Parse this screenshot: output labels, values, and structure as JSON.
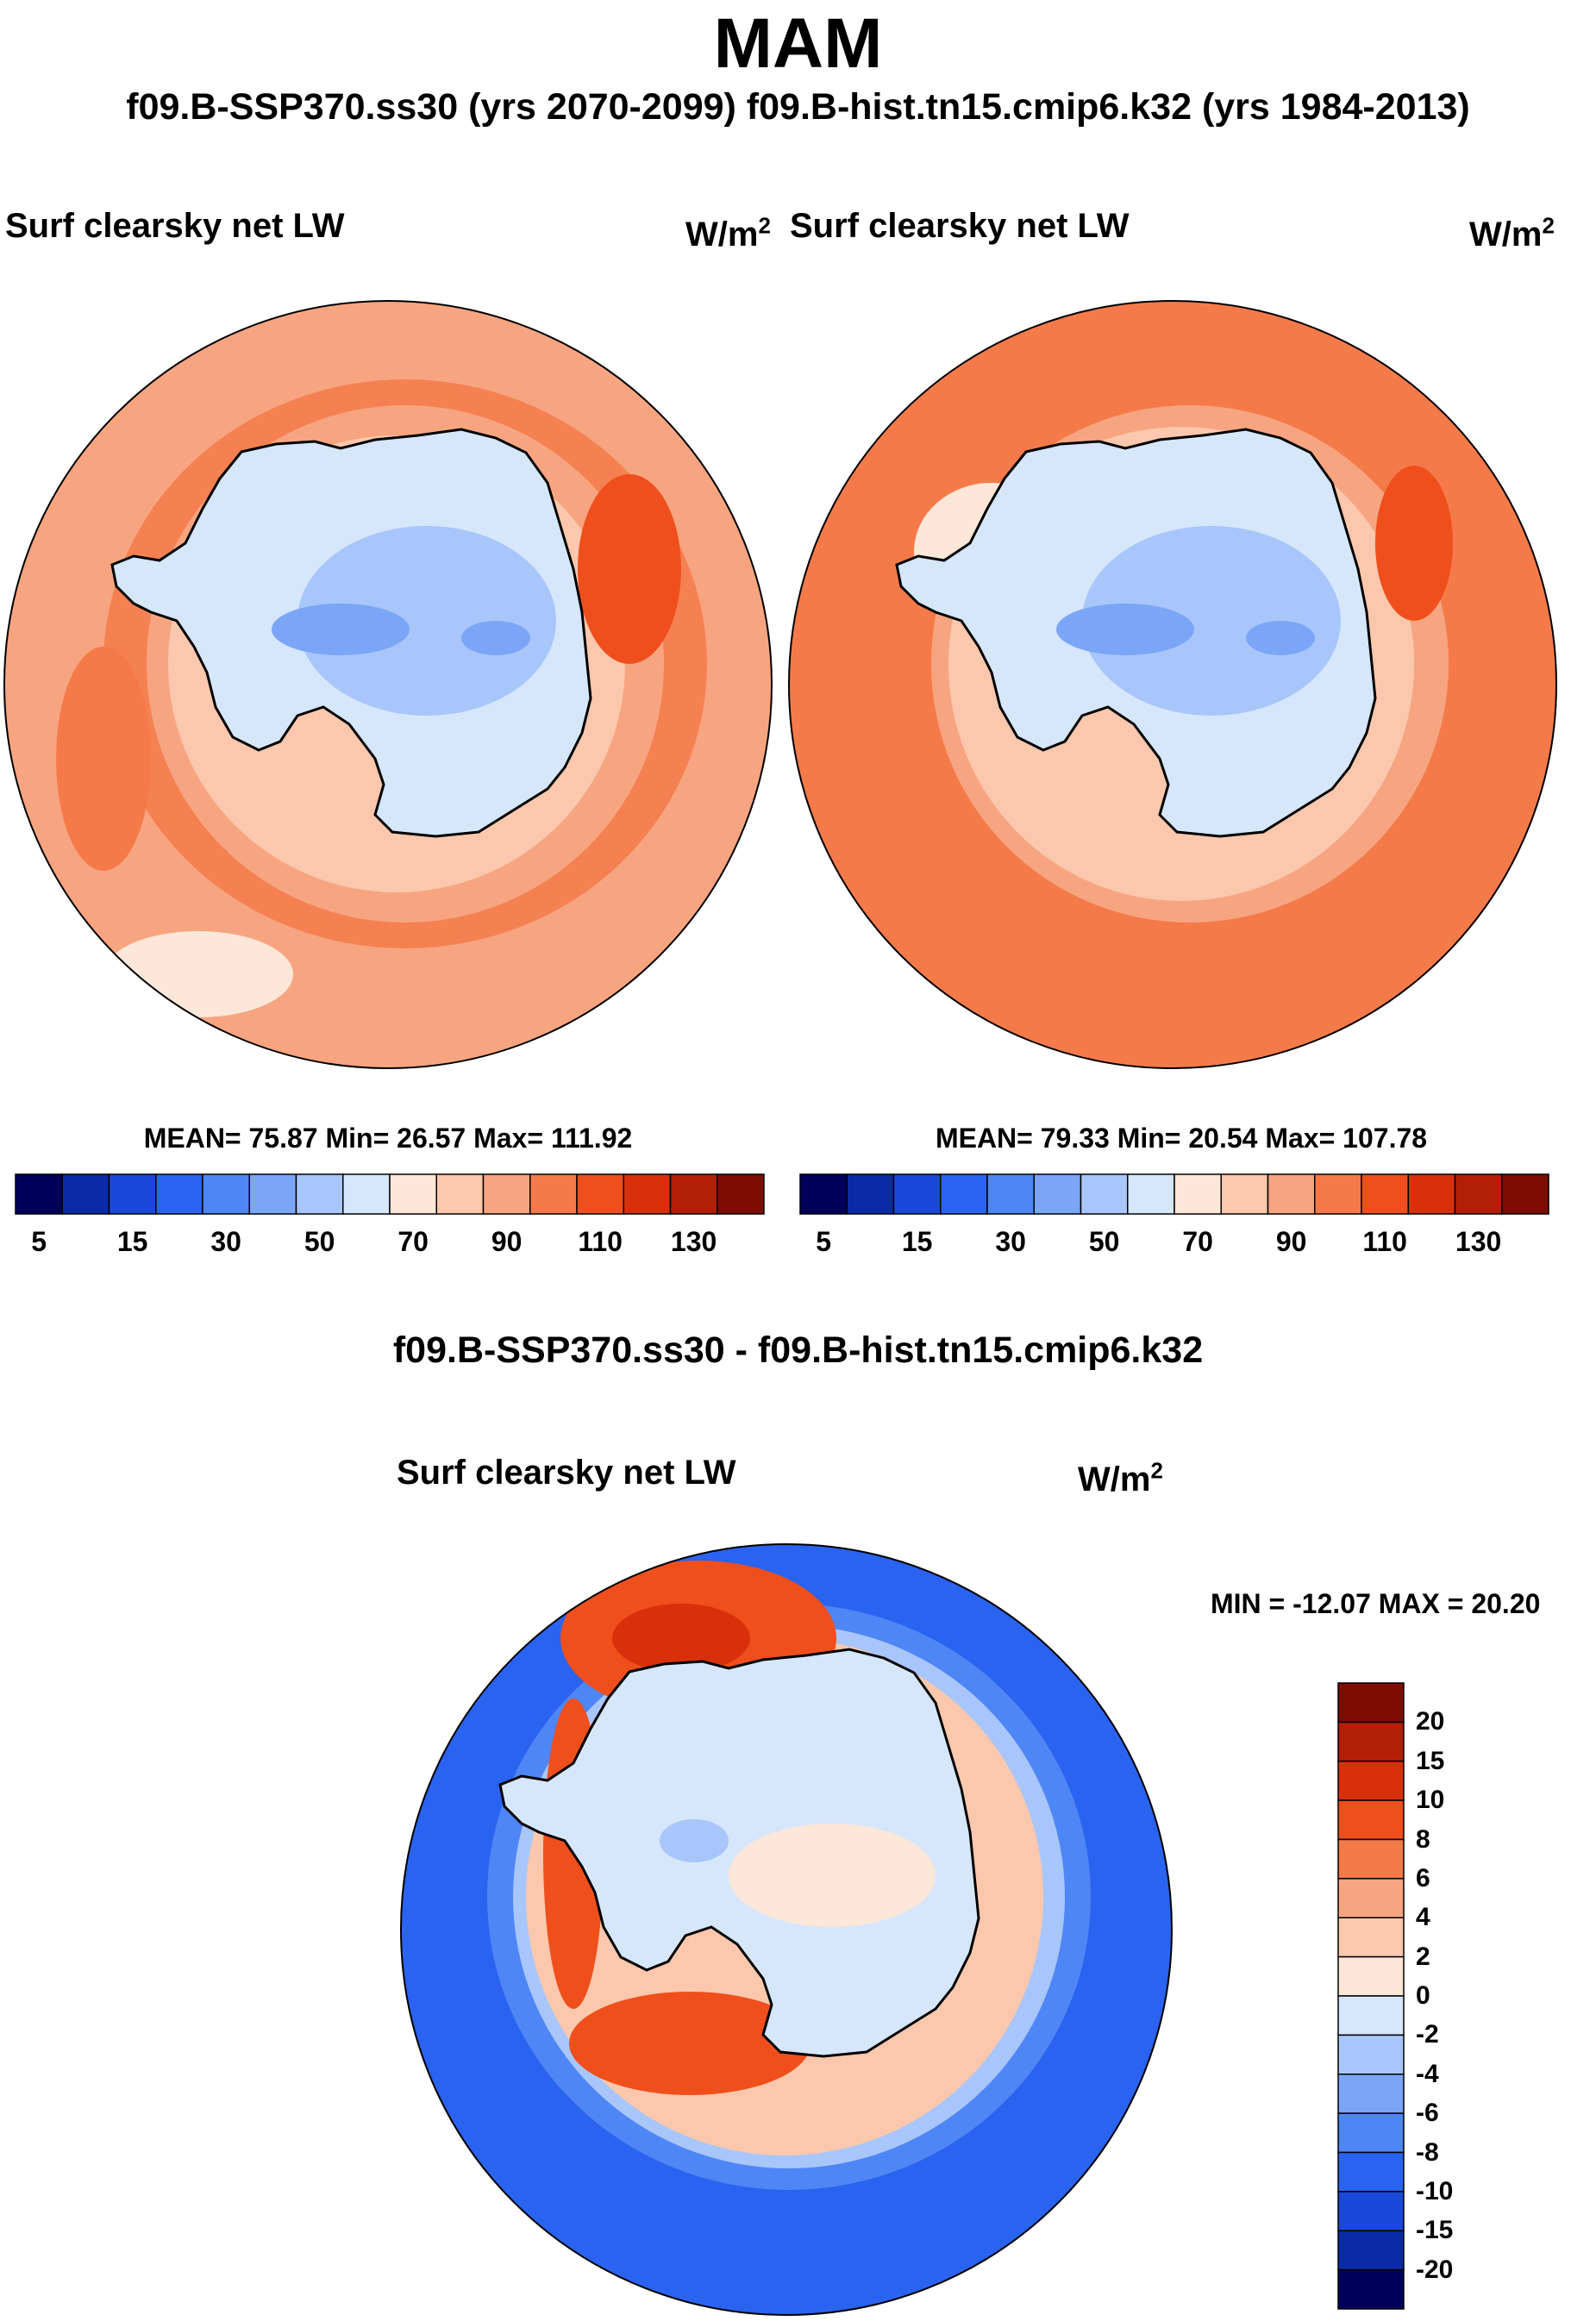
{
  "figure": {
    "season": "MAM",
    "cases_line": "f09.B-SSP370.ss30 (yrs 2070-2099)  f09.B-hist.tn15.cmip6.k32 (yrs 1984-2013)",
    "diff_title": "f09.B-SSP370.ss30 - f09.B-hist.tn15.cmip6.k32"
  },
  "panels": {
    "left": {
      "variable": "Surf clearsky net LW",
      "units": "W/m",
      "units_exp": "2",
      "stats": "MEAN=  75.87  Min=  26.57  Max= 111.92"
    },
    "right": {
      "variable": "Surf clearsky net LW",
      "units": "W/m",
      "units_exp": "2",
      "stats": "MEAN=  79.33  Min=  20.54  Max= 107.78"
    },
    "diff": {
      "variable": "Surf clearsky net LW",
      "units": "W/m",
      "units_exp": "2",
      "stats": "MIN = -12.07 MAX =  20.20"
    }
  },
  "chart_data": [
    {
      "type": "map",
      "projection": "south polar stereographic",
      "title": "Surf clearsky net LW",
      "units": "W/m2",
      "period": "f09.B-SSP370.ss30 (yrs 2070-2099)",
      "mean": 75.87,
      "min": 26.57,
      "max": 111.92,
      "colorbar_ticks": [
        "5",
        "15",
        "30",
        "50",
        "70",
        "90",
        "110",
        "130"
      ],
      "levels": [
        5,
        10,
        15,
        20,
        30,
        40,
        50,
        60,
        70,
        80,
        90,
        100,
        110,
        120,
        130
      ],
      "colors": [
        "#00005a",
        "#0a2aa6",
        "#1a48d9",
        "#2a63f0",
        "#4f86f5",
        "#7ba6f8",
        "#a9c6fa",
        "#d6e7fc",
        "#fde7d8",
        "#fbc8ad",
        "#f7a581",
        "#f57a4a",
        "#ef4f1c",
        "#d9300c",
        "#b31e06",
        "#7d0c03"
      ]
    },
    {
      "type": "map",
      "projection": "south polar stereographic",
      "title": "Surf clearsky net LW",
      "units": "W/m2",
      "period": "f09.B-hist.tn15.cmip6.k32 (yrs 1984-2013)",
      "mean": 79.33,
      "min": 20.54,
      "max": 107.78,
      "colorbar_ticks": [
        "5",
        "15",
        "30",
        "50",
        "70",
        "90",
        "110",
        "130"
      ],
      "levels": [
        5,
        10,
        15,
        20,
        30,
        40,
        50,
        60,
        70,
        80,
        90,
        100,
        110,
        120,
        130
      ],
      "colors": [
        "#00005a",
        "#0a2aa6",
        "#1a48d9",
        "#2a63f0",
        "#4f86f5",
        "#7ba6f8",
        "#a9c6fa",
        "#d6e7fc",
        "#fde7d8",
        "#fbc8ad",
        "#f7a581",
        "#f57a4a",
        "#ef4f1c",
        "#d9300c",
        "#b31e06",
        "#7d0c03"
      ]
    },
    {
      "type": "map",
      "projection": "south polar stereographic",
      "title": "Surf clearsky net LW",
      "units": "W/m2",
      "period": "f09.B-SSP370.ss30 - f09.B-hist.tn15.cmip6.k32",
      "min": -12.07,
      "max": 20.2,
      "colorbar_ticks": [
        "20",
        "15",
        "10",
        "8",
        "6",
        "4",
        "2",
        "0",
        "-2",
        "-4",
        "-6",
        "-8",
        "-10",
        "-15",
        "-20"
      ],
      "colors": [
        "#7d0c03",
        "#b31e06",
        "#d9300c",
        "#ef4f1c",
        "#f57a4a",
        "#f7a581",
        "#fbc8ad",
        "#fde7d8",
        "#d6e7fc",
        "#a9c6fa",
        "#7ba6f8",
        "#4f86f5",
        "#2a63f0",
        "#1a48d9",
        "#0a2aa6",
        "#00005a"
      ]
    }
  ]
}
